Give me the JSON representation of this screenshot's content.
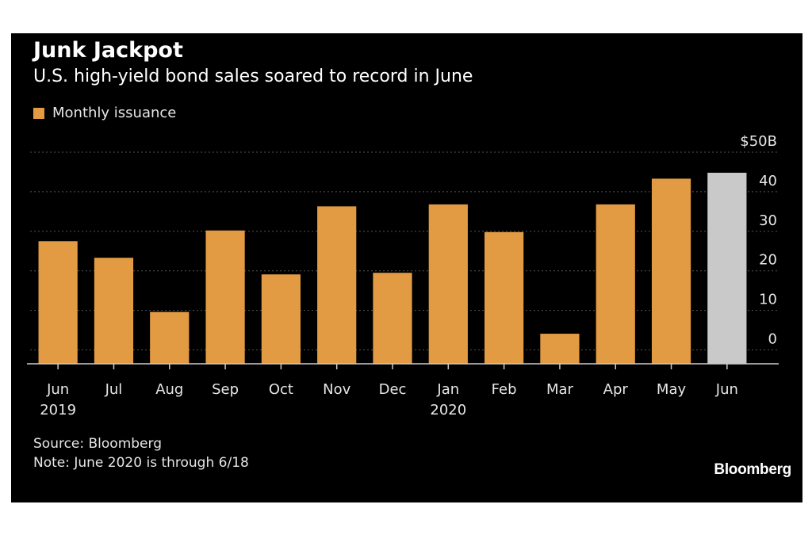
{
  "title": "Junk Jackpot",
  "subtitle": "U.S. high-yield bond sales soared to record in June",
  "legend": {
    "label": "Monthly issuance"
  },
  "source": "Source: Bloomberg",
  "note": "Note: June 2020 is through 6/18",
  "brand": "Bloomberg",
  "colors": {
    "background": "#000000",
    "bar": "#e39b43",
    "highlight": "#c9c9c9",
    "grid": "#555555",
    "text": "#e6e6e6"
  },
  "chart_data": {
    "type": "bar",
    "categories": [
      "Jun",
      "Jul",
      "Aug",
      "Sep",
      "Oct",
      "Nov",
      "Dec",
      "Jan",
      "Feb",
      "Mar",
      "Apr",
      "May",
      "Jun"
    ],
    "year_labels": [
      "2019",
      "",
      "",
      "",
      "",
      "",
      "",
      "2020",
      "",
      "",
      "",
      "",
      ""
    ],
    "series": [
      {
        "name": "Monthly issuance",
        "values": [
          27.5,
          23.3,
          9.6,
          30.2,
          19.1,
          36.3,
          19.5,
          36.8,
          29.8,
          4.1,
          36.8,
          43.3,
          44.8
        ]
      }
    ],
    "highlight_index": 12,
    "y_ticks": [
      "0",
      "10",
      "20",
      "30",
      "40",
      "$50B"
    ],
    "y_tick_values": [
      0,
      10,
      20,
      30,
      40,
      50
    ],
    "ylim": [
      -3.5,
      50
    ],
    "grid": true,
    "y_axis_side": "right"
  }
}
